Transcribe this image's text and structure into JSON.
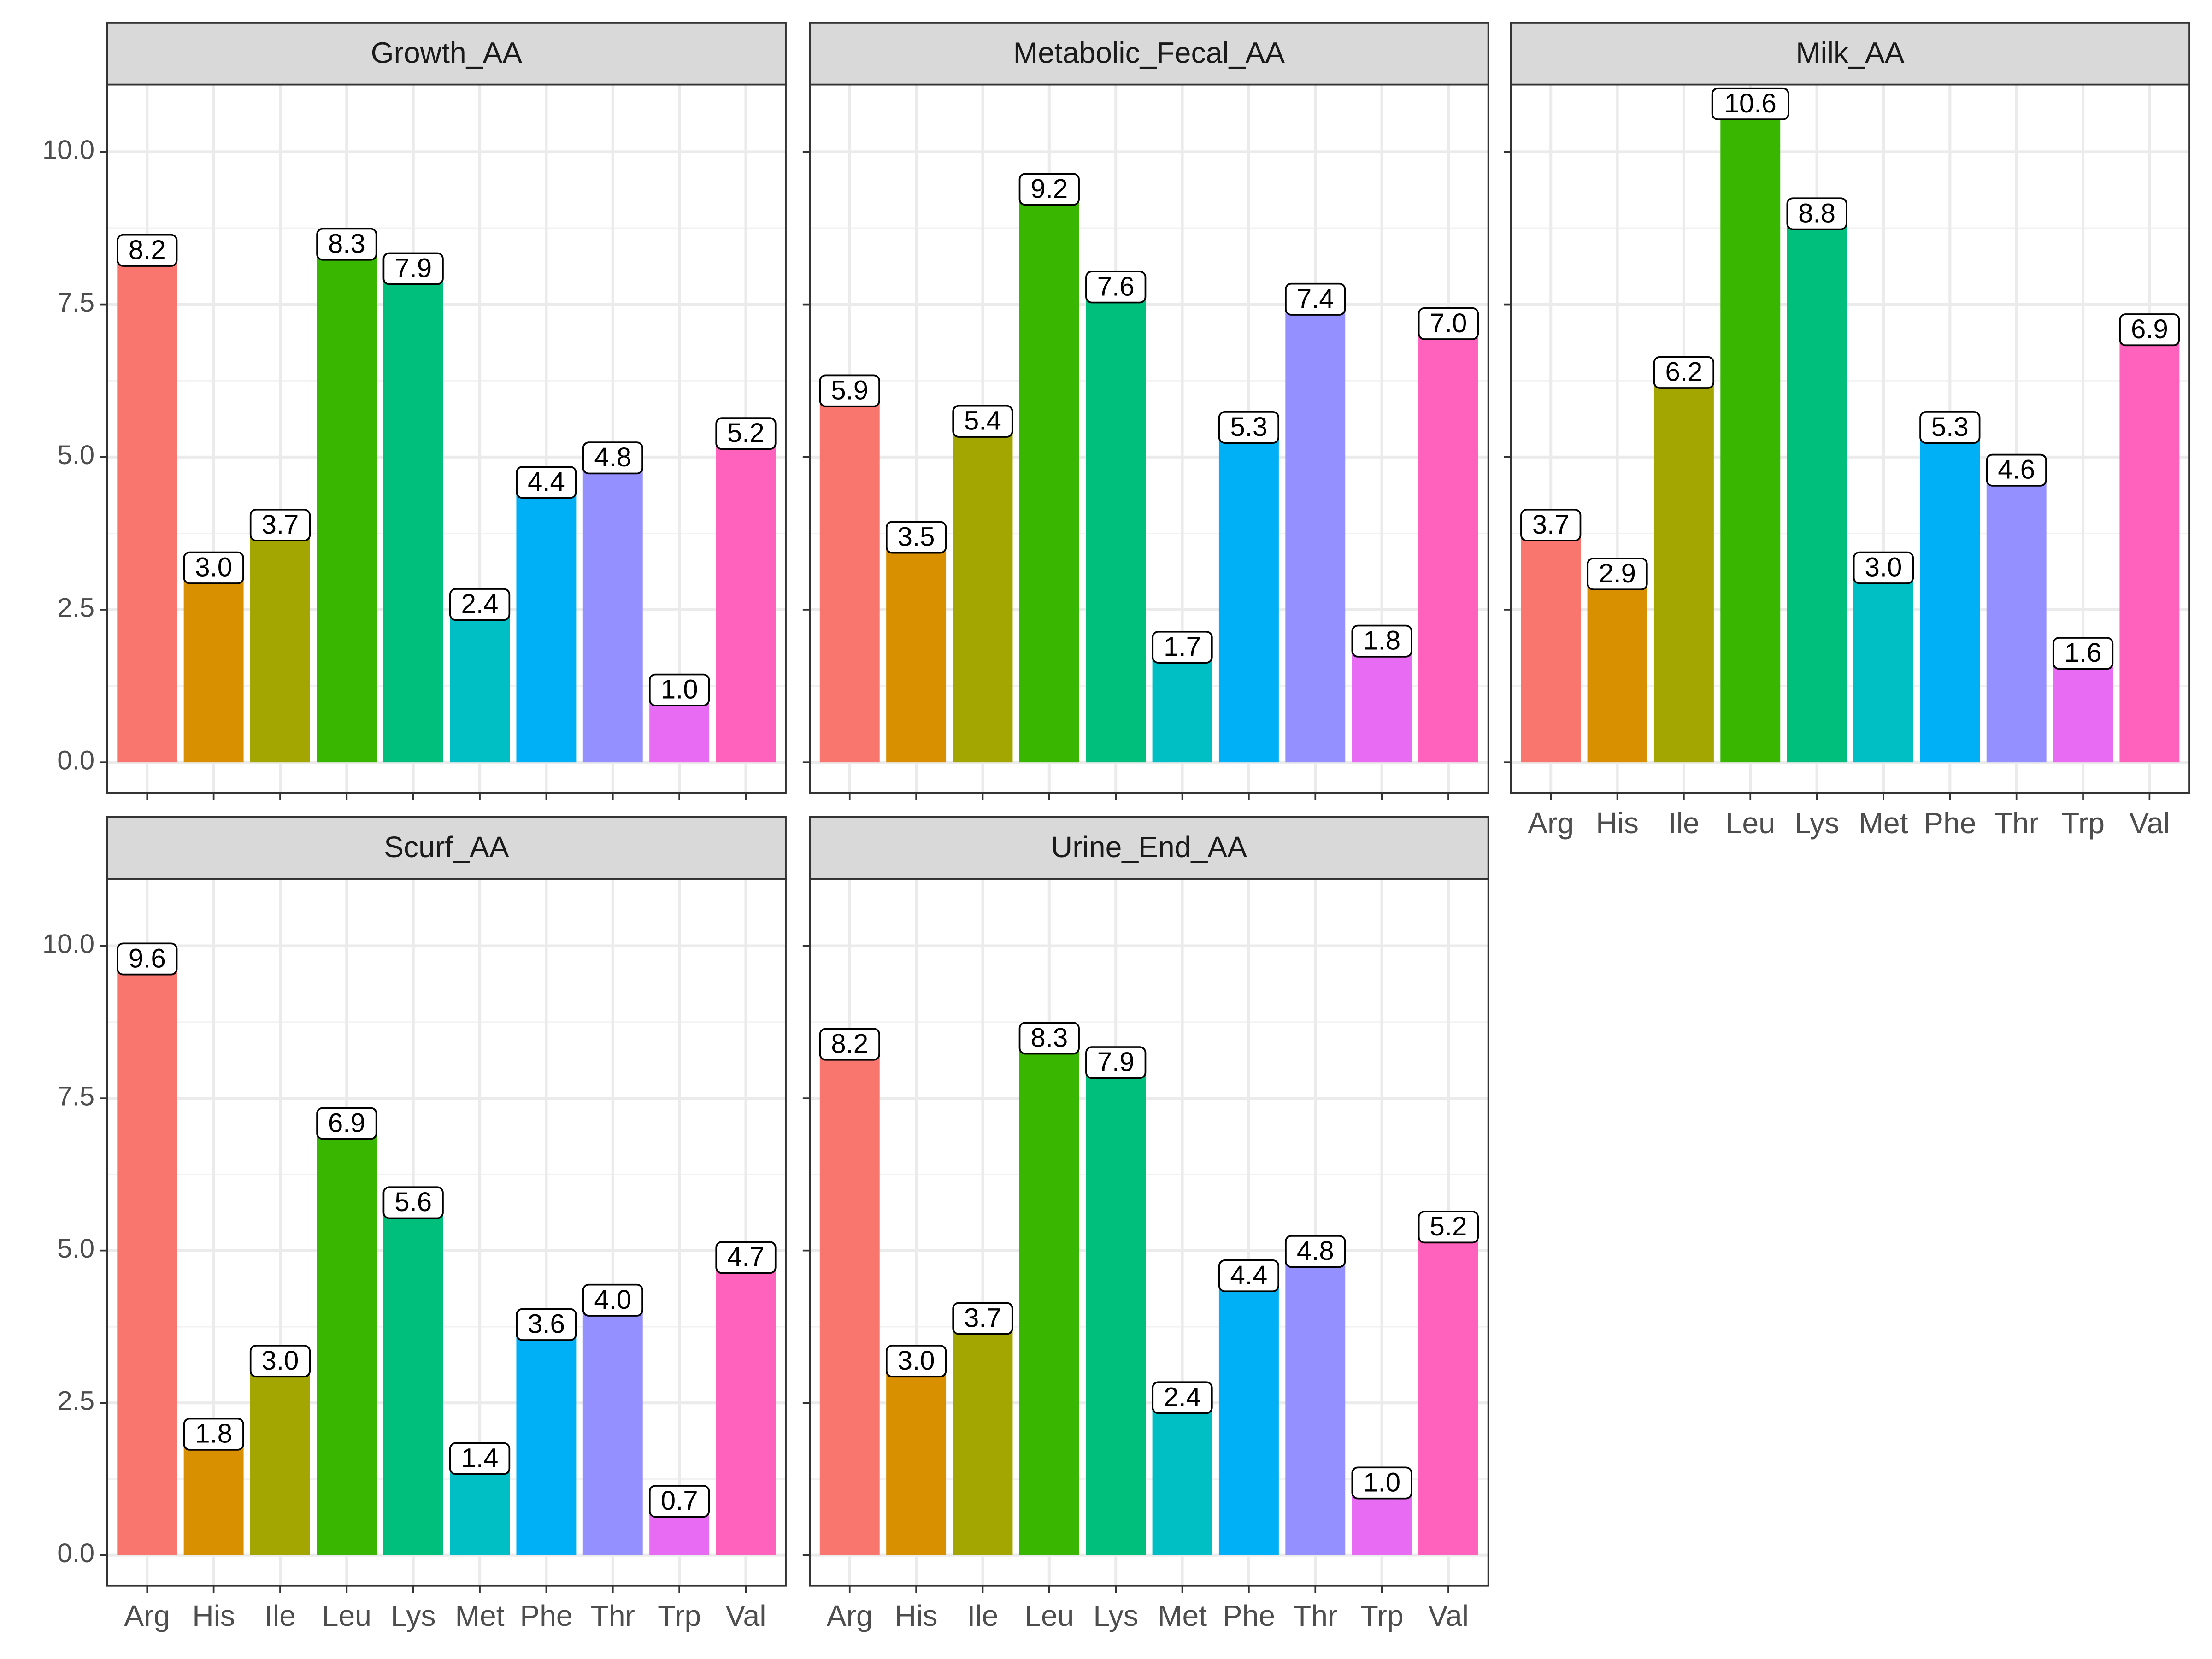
{
  "chart_data": {
    "type": "bar",
    "categories": [
      "Arg",
      "His",
      "Ile",
      "Leu",
      "Lys",
      "Met",
      "Phe",
      "Thr",
      "Trp",
      "Val"
    ],
    "colors": [
      "#F8766D",
      "#D89000",
      "#A3A500",
      "#39B600",
      "#00BF7D",
      "#00BFC4",
      "#00B0F6",
      "#9590FF",
      "#E76BF3",
      "#FF62BC"
    ],
    "ylim": [
      -0.5,
      11.1
    ],
    "yticks": [
      {
        "value": 0,
        "label": "0.0"
      },
      {
        "value": 2.5,
        "label": "2.5"
      },
      {
        "value": 5,
        "label": "5.0"
      },
      {
        "value": 7.5,
        "label": "7.5"
      },
      {
        "value": 10,
        "label": "10.0"
      }
    ],
    "grid": true,
    "facets": [
      {
        "title": "Growth_AA",
        "values": [
          8.2,
          3.0,
          3.7,
          8.3,
          7.9,
          2.4,
          4.4,
          4.8,
          1.0,
          5.2
        ],
        "value_labels": [
          "8.2",
          "3.0",
          "3.7",
          "8.3",
          "7.9",
          "2.4",
          "4.4",
          "4.8",
          "1.0",
          "5.2"
        ]
      },
      {
        "title": "Metabolic_Fecal_AA",
        "values": [
          5.9,
          3.5,
          5.4,
          9.2,
          7.6,
          1.7,
          5.3,
          7.4,
          1.8,
          7.0
        ],
        "value_labels": [
          "5.9",
          "3.5",
          "5.4",
          "9.2",
          "7.6",
          "1.7",
          "5.3",
          "7.4",
          "1.8",
          "7.0"
        ]
      },
      {
        "title": "Milk_AA",
        "values": [
          3.7,
          2.9,
          6.2,
          10.6,
          8.8,
          3.0,
          5.3,
          4.6,
          1.6,
          6.9
        ],
        "value_labels": [
          "3.7",
          "2.9",
          "6.2",
          "10.6",
          "8.8",
          "3.0",
          "5.3",
          "4.6",
          "1.6",
          "6.9"
        ]
      },
      {
        "title": "Scurf_AA",
        "values": [
          9.6,
          1.8,
          3.0,
          6.9,
          5.6,
          1.4,
          3.6,
          4.0,
          0.7,
          4.7
        ],
        "value_labels": [
          "9.6",
          "1.8",
          "3.0",
          "6.9",
          "5.6",
          "1.4",
          "3.6",
          "4.0",
          "0.7",
          "4.7"
        ]
      },
      {
        "title": "Urine_End_AA",
        "values": [
          8.2,
          3.0,
          3.7,
          8.3,
          7.9,
          2.4,
          4.4,
          4.8,
          1.0,
          5.2
        ],
        "value_labels": [
          "8.2",
          "3.0",
          "3.7",
          "8.3",
          "7.9",
          "2.4",
          "4.4",
          "4.8",
          "1.0",
          "5.2"
        ]
      }
    ]
  }
}
